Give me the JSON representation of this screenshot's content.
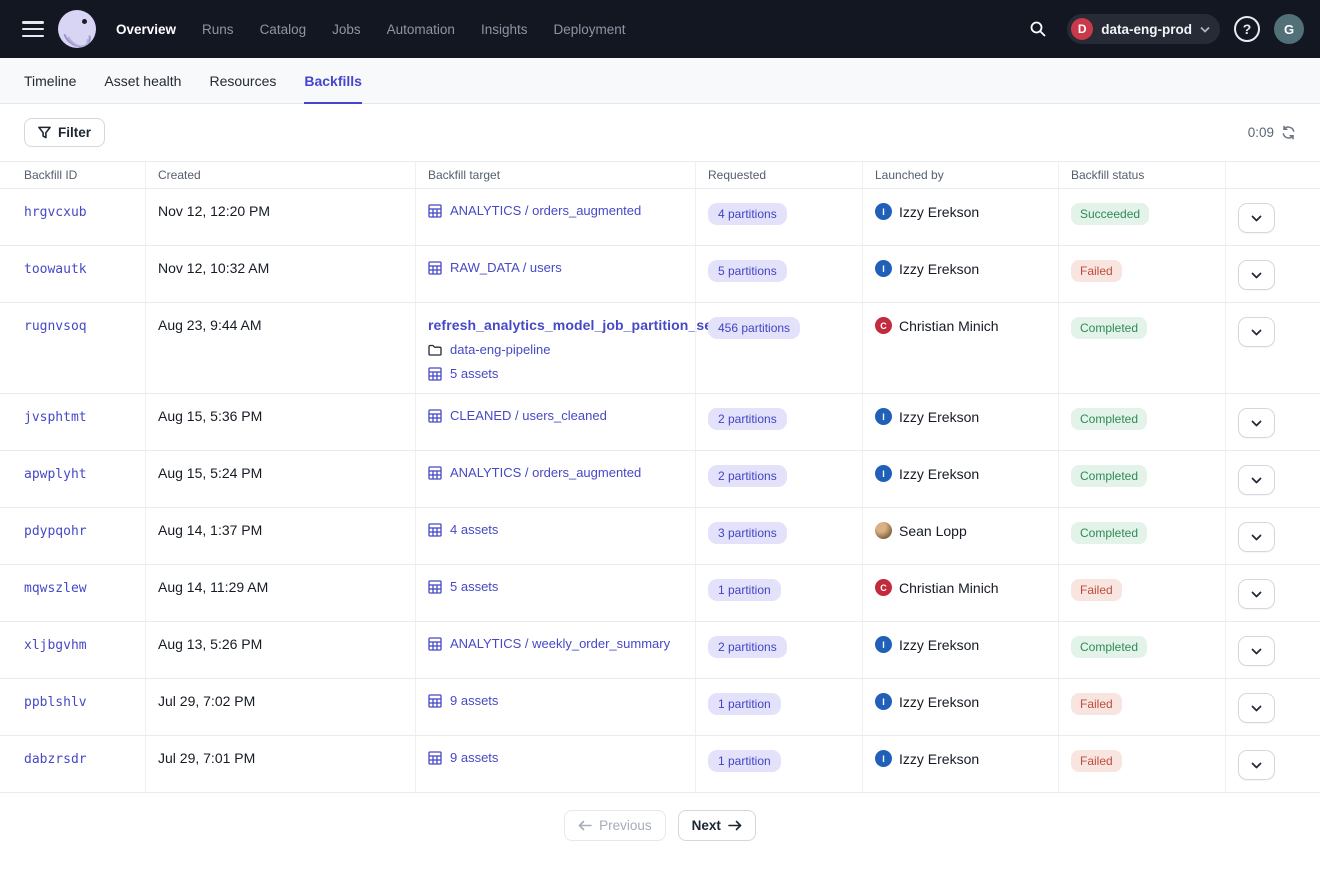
{
  "colors": {
    "accent": "#4645d0",
    "link": "#4649c6",
    "pill_bg": "#e4e2fb",
    "pill_text": "#4144c4",
    "success_bg": "#e3f3e9",
    "success_text": "#2e8a57",
    "failed_bg": "#f9e5e0",
    "failed_text": "#be4c3c",
    "topnav_bg": "#131722"
  },
  "topnav": {
    "items": [
      {
        "label": "Overview",
        "active": true
      },
      {
        "label": "Runs",
        "active": false
      },
      {
        "label": "Catalog",
        "active": false
      },
      {
        "label": "Jobs",
        "active": false
      },
      {
        "label": "Automation",
        "active": false
      },
      {
        "label": "Insights",
        "active": false
      },
      {
        "label": "Deployment",
        "active": false
      }
    ],
    "workspace": {
      "initial": "D",
      "name": "data-eng-prod"
    },
    "user_initial": "G"
  },
  "tabs": [
    {
      "label": "Timeline",
      "active": false
    },
    {
      "label": "Asset health",
      "active": false
    },
    {
      "label": "Resources",
      "active": false
    },
    {
      "label": "Backfills",
      "active": true
    }
  ],
  "toolbar": {
    "filter_label": "Filter",
    "refresh_timer": "0:09"
  },
  "table": {
    "columns": [
      "Backfill ID",
      "Created",
      "Backfill target",
      "Requested",
      "Launched by",
      "Backfill status"
    ],
    "rows": [
      {
        "id": "hrgvcxub",
        "created": "Nov 12, 12:20 PM",
        "target": [
          {
            "icon": "asset",
            "text": "ANALYTICS / orders_augmented",
            "bold": false
          }
        ],
        "requested": "4 partitions",
        "launched_by": {
          "name": "Izzy Erekson",
          "avatar": "initial",
          "initial": "I",
          "color": "#2160b8"
        },
        "status": {
          "label": "Succeeded",
          "kind": "success"
        }
      },
      {
        "id": "toowautk",
        "created": "Nov 12, 10:32 AM",
        "target": [
          {
            "icon": "asset",
            "text": "RAW_DATA / users",
            "bold": false
          }
        ],
        "requested": "5 partitions",
        "launched_by": {
          "name": "Izzy Erekson",
          "avatar": "initial",
          "initial": "I",
          "color": "#2160b8"
        },
        "status": {
          "label": "Failed",
          "kind": "failed"
        }
      },
      {
        "id": "rugnvsoq",
        "created": "Aug 23, 9:44 AM",
        "target": [
          {
            "icon": null,
            "text": "refresh_analytics_model_job_partition_set",
            "bold": true
          },
          {
            "icon": "folder",
            "text": "data-eng-pipeline",
            "bold": false
          },
          {
            "icon": "asset",
            "text": "5 assets",
            "bold": false
          }
        ],
        "requested": "456 partitions",
        "launched_by": {
          "name": "Christian Minich",
          "avatar": "initial",
          "initial": "C",
          "color": "#c22b3d"
        },
        "status": {
          "label": "Completed",
          "kind": "success"
        }
      },
      {
        "id": "jvsphtmt",
        "created": "Aug 15, 5:36 PM",
        "target": [
          {
            "icon": "asset",
            "text": "CLEANED / users_cleaned",
            "bold": false
          }
        ],
        "requested": "2 partitions",
        "launched_by": {
          "name": "Izzy Erekson",
          "avatar": "initial",
          "initial": "I",
          "color": "#2160b8"
        },
        "status": {
          "label": "Completed",
          "kind": "success"
        }
      },
      {
        "id": "apwplyht",
        "created": "Aug 15, 5:24 PM",
        "target": [
          {
            "icon": "asset",
            "text": "ANALYTICS / orders_augmented",
            "bold": false
          }
        ],
        "requested": "2 partitions",
        "launched_by": {
          "name": "Izzy Erekson",
          "avatar": "initial",
          "initial": "I",
          "color": "#2160b8"
        },
        "status": {
          "label": "Completed",
          "kind": "success"
        }
      },
      {
        "id": "pdypqohr",
        "created": "Aug 14, 1:37 PM",
        "target": [
          {
            "icon": "asset",
            "text": "4 assets",
            "bold": false
          }
        ],
        "requested": "3 partitions",
        "launched_by": {
          "name": "Sean Lopp",
          "avatar": "photo",
          "initial": "",
          "color": ""
        },
        "status": {
          "label": "Completed",
          "kind": "success"
        }
      },
      {
        "id": "mqwszlew",
        "created": "Aug 14, 11:29 AM",
        "target": [
          {
            "icon": "asset",
            "text": "5 assets",
            "bold": false
          }
        ],
        "requested": "1 partition",
        "launched_by": {
          "name": "Christian Minich",
          "avatar": "initial",
          "initial": "C",
          "color": "#c22b3d"
        },
        "status": {
          "label": "Failed",
          "kind": "failed"
        }
      },
      {
        "id": "xljbgvhm",
        "created": "Aug 13, 5:26 PM",
        "target": [
          {
            "icon": "asset",
            "text": "ANALYTICS / weekly_order_summary",
            "bold": false
          }
        ],
        "requested": "2 partitions",
        "launched_by": {
          "name": "Izzy Erekson",
          "avatar": "initial",
          "initial": "I",
          "color": "#2160b8"
        },
        "status": {
          "label": "Completed",
          "kind": "success"
        }
      },
      {
        "id": "ppblshlv",
        "created": "Jul 29, 7:02 PM",
        "target": [
          {
            "icon": "asset",
            "text": "9 assets",
            "bold": false
          }
        ],
        "requested": "1 partition",
        "launched_by": {
          "name": "Izzy Erekson",
          "avatar": "initial",
          "initial": "I",
          "color": "#2160b8"
        },
        "status": {
          "label": "Failed",
          "kind": "failed"
        }
      },
      {
        "id": "dabzrsdr",
        "created": "Jul 29, 7:01 PM",
        "target": [
          {
            "icon": "asset",
            "text": "9 assets",
            "bold": false
          }
        ],
        "requested": "1 partition",
        "launched_by": {
          "name": "Izzy Erekson",
          "avatar": "initial",
          "initial": "I",
          "color": "#2160b8"
        },
        "status": {
          "label": "Failed",
          "kind": "failed"
        }
      }
    ]
  },
  "pagination": {
    "previous_label": "Previous",
    "next_label": "Next"
  }
}
